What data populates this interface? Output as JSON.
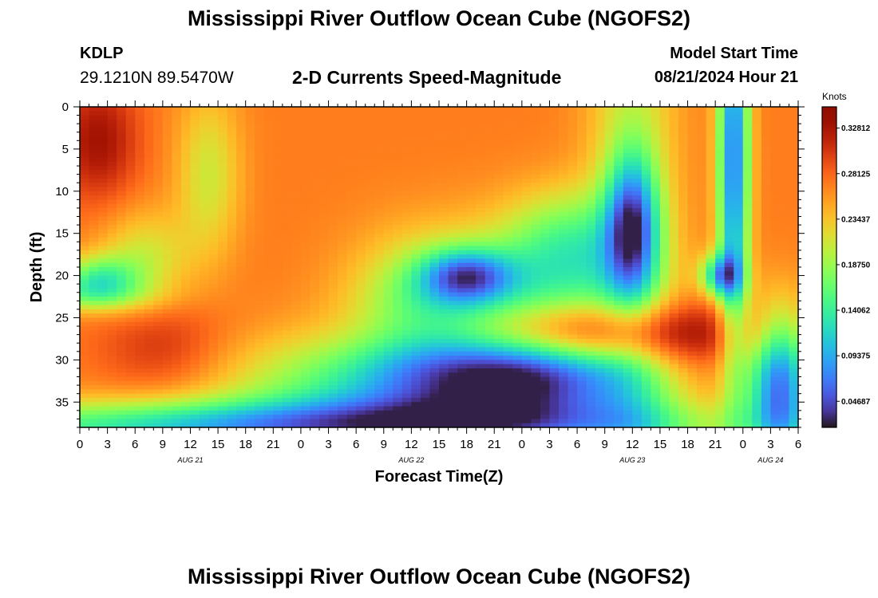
{
  "page": {
    "title": "Mississippi River Outflow Ocean Cube (NGOFS2)",
    "footer_title": "Mississippi River Outflow Ocean Cube (NGOFS2)",
    "station": {
      "id": "KDLP",
      "coords": "29.1210N  89.5470W"
    },
    "subtitle": "2-D Currents Speed-Magnitude",
    "model_start": {
      "label": "Model Start Time",
      "value": "08/21/2024 Hour 21"
    }
  },
  "chart_data": {
    "type": "heatmap",
    "title": "2-D Currents Speed-Magnitude",
    "xlabel": "Forecast Time(Z)",
    "ylabel": "Depth (ft)",
    "x_range_hours": [
      0,
      78
    ],
    "x_tick_labels": [
      "0",
      "3",
      "6",
      "9",
      "12",
      "15",
      "18",
      "21",
      "0",
      "3",
      "6",
      "9",
      "12",
      "15",
      "18",
      "21",
      "0",
      "3",
      "6",
      "9",
      "12",
      "15",
      "18",
      "21",
      "0",
      "3",
      "6"
    ],
    "date_labels": [
      {
        "text": "AUG 21",
        "hour": 12
      },
      {
        "text": "AUG 22",
        "hour": 36
      },
      {
        "text": "AUG 23",
        "hour": 60
      },
      {
        "text": "AUG 24",
        "hour": 75
      }
    ],
    "y_range": [
      0,
      38
    ],
    "y_ticks": [
      0,
      5,
      10,
      15,
      20,
      25,
      30,
      35
    ],
    "y_inverted": true,
    "colorbar": {
      "title": "Knots",
      "min": 0.02,
      "max": 0.35,
      "tick_values": [
        0.04687,
        0.09375,
        0.14062,
        0.1875,
        0.23437,
        0.28125,
        0.32812
      ],
      "tick_labels": [
        "0.04687",
        "0.09375",
        "0.14062",
        "0.18750",
        "0.23437",
        "0.28125",
        "0.32812"
      ],
      "colormap": "turbo"
    },
    "grid": {
      "depth_step_ft": 0.5,
      "hour_step": 1
    },
    "field": {
      "base": 0.27,
      "blobs": [
        {
          "hour": 60,
          "depth": 10,
          "sh": 3.5,
          "sd": 40,
          "amp": -0.06
        },
        {
          "hour": 60,
          "depth": 14,
          "sh": 2.0,
          "sd": 6,
          "amp": -0.16
        },
        {
          "hour": 71,
          "depth": 6,
          "sh": 1.2,
          "sd": 16,
          "amp": -0.2
        },
        {
          "hour": 69.5,
          "depth": 20,
          "sh": 1.5,
          "sd": 1.8,
          "amp": -0.14
        },
        {
          "hour": 53,
          "depth": 16,
          "sh": 5.0,
          "sd": 4.5,
          "amp": -0.09
        },
        {
          "hour": 53,
          "depth": 27,
          "sh": 11,
          "sd": 2.8,
          "amp": 0.18
        },
        {
          "hour": 50,
          "depth": 27,
          "sh": 8,
          "sd": 7,
          "amp": -0.12
        },
        {
          "hour": 50,
          "depth": 31,
          "sh": 8,
          "sd": 4,
          "amp": -0.1
        },
        {
          "hour": 42,
          "depth": 20,
          "sh": 3.5,
          "sd": 2.2,
          "amp": -0.13
        },
        {
          "hour": 38,
          "depth": 24,
          "sh": 6,
          "sd": 6,
          "amp": -0.1
        },
        {
          "hour": 36,
          "depth": 33,
          "sh": 13,
          "sd": 4.5,
          "amp": -0.14
        },
        {
          "hour": 2,
          "depth": 20.5,
          "sh": 3,
          "sd": 2.0,
          "amp": -0.11
        },
        {
          "hour": 7,
          "depth": 18,
          "sh": 3.5,
          "sd": 4,
          "amp": -0.06
        },
        {
          "hour": 0,
          "depth": 22.5,
          "sh": 6,
          "sd": 1.4,
          "amp": -0.05
        },
        {
          "hour": 25,
          "depth": 38,
          "sh": 30,
          "sd": 2.3,
          "amp": -0.17
        },
        {
          "hour": 76,
          "depth": 33,
          "sh": 2.5,
          "sd": 6,
          "amp": -0.2
        },
        {
          "hour": 14,
          "depth": 8,
          "sh": 2.5,
          "sd": 7,
          "amp": -0.06
        },
        {
          "hour": 2,
          "depth": 4,
          "sh": 3,
          "sd": 5,
          "amp": 0.06
        },
        {
          "hour": 9,
          "depth": 28.5,
          "sh": 5,
          "sd": 4,
          "amp": 0.04
        }
      ]
    }
  }
}
